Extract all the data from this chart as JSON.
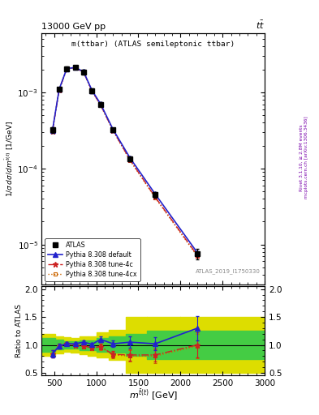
{
  "title_left": "13000 GeV pp",
  "title_right": "tt",
  "plot_title": "m(ttbar) (ATLAS semileptonic ttbar)",
  "ref_label": "ATLAS_2019_I1750330",
  "right_label1": "Rivet 3.1.10, ≥ 2.8M events",
  "right_label2": "mcplots.cern.ch [arXiv:1306.3436]",
  "xlabel": "m^{tbart} [GeV]",
  "ylabel": "1 / σ dσ / d m^{tbar(t)} [1/GeV]",
  "ratio_ylabel": "Ratio to ATLAS",
  "data_x": [
    480,
    560,
    650,
    750,
    850,
    950,
    1050,
    1200,
    1400,
    1700,
    2200
  ],
  "data_y": [
    0.00032,
    0.0011,
    0.00205,
    0.00215,
    0.00185,
    0.00105,
    0.0007,
    0.00032,
    0.000135,
    4.5e-05,
    7.5e-06
  ],
  "data_yerr_lo": [
    2.5e-05,
    7e-05,
    0.00012,
    0.00012,
    0.00012,
    7e-05,
    4e-05,
    2e-05,
    1e-05,
    4e-06,
    1.2e-06
  ],
  "data_yerr_hi": [
    2.5e-05,
    7e-05,
    0.00012,
    0.00012,
    0.00012,
    7e-05,
    4e-05,
    2e-05,
    1e-05,
    4e-06,
    1.2e-06
  ],
  "py_def_y": [
    0.000315,
    0.0011,
    0.00205,
    0.00213,
    0.00187,
    0.00106,
    0.00071,
    0.000325,
    0.000138,
    4.6e-05,
    7.8e-06
  ],
  "py_4c_y": [
    0.00031,
    0.00108,
    0.00203,
    0.00212,
    0.00184,
    0.00104,
    0.00069,
    0.000315,
    0.00013,
    4.2e-05,
    7.2e-06
  ],
  "py_4cx_y": [
    0.00031,
    0.00108,
    0.00202,
    0.00211,
    0.00183,
    0.00103,
    0.00068,
    0.000312,
    0.000128,
    4.1e-05,
    7e-06
  ],
  "ratio_def": [
    0.84,
    0.98,
    1.02,
    1.02,
    1.05,
    1.01,
    1.1,
    1.02,
    1.05,
    1.02,
    1.3
  ],
  "ratio_4c": [
    0.84,
    0.98,
    1.02,
    1.0,
    0.98,
    0.95,
    0.97,
    0.83,
    0.82,
    0.82,
    1.0
  ],
  "ratio_4cx": [
    0.84,
    0.97,
    1.01,
    0.99,
    0.97,
    0.94,
    0.96,
    0.82,
    0.8,
    0.8,
    0.98
  ],
  "ratio_def_err": [
    0.06,
    0.04,
    0.03,
    0.03,
    0.03,
    0.03,
    0.05,
    0.06,
    0.1,
    0.12,
    0.22
  ],
  "ratio_4c_err": [
    0.06,
    0.04,
    0.03,
    0.03,
    0.03,
    0.03,
    0.05,
    0.06,
    0.1,
    0.12,
    0.22
  ],
  "ratio_4cx_err": [
    0.06,
    0.04,
    0.03,
    0.03,
    0.03,
    0.03,
    0.05,
    0.06,
    0.1,
    0.12,
    0.22
  ],
  "band_edges": [
    350,
    510,
    610,
    700,
    800,
    900,
    1000,
    1150,
    1350,
    1600,
    2000,
    3000
  ],
  "green_lo": [
    0.88,
    0.92,
    0.94,
    0.93,
    0.91,
    0.9,
    0.88,
    0.86,
    0.8,
    0.75,
    0.75
  ],
  "green_hi": [
    1.12,
    1.09,
    1.07,
    1.07,
    1.08,
    1.08,
    1.13,
    1.15,
    1.2,
    1.25,
    1.25
  ],
  "yellow_lo": [
    0.8,
    0.85,
    0.88,
    0.86,
    0.83,
    0.8,
    0.78,
    0.73,
    0.5,
    0.5,
    0.5
  ],
  "yellow_hi": [
    1.2,
    1.15,
    1.14,
    1.13,
    1.15,
    1.16,
    1.22,
    1.27,
    1.5,
    1.5,
    1.5
  ],
  "xlim": [
    350,
    3000
  ],
  "ylim_main": [
    3e-06,
    0.006
  ],
  "ylim_ratio": [
    0.45,
    2.05
  ],
  "ratio_yticks": [
    0.5,
    1.0,
    1.5,
    2.0
  ],
  "color_def": "#2222cc",
  "color_4c": "#cc2222",
  "color_4cx": "#cc6600",
  "color_atlas": "#000000",
  "color_green": "#44cc44",
  "color_yellow": "#dddd00",
  "bg_color": "#ffffff"
}
